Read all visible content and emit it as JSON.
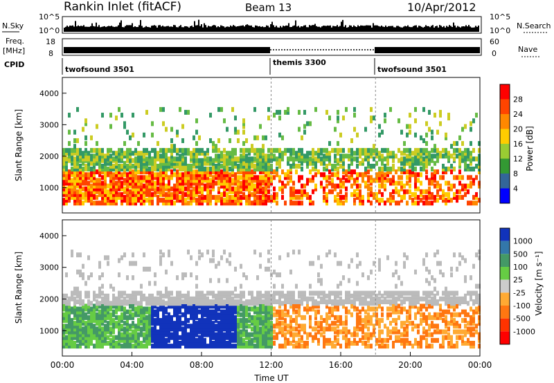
{
  "header": {
    "station": "Rankin Inlet (fitACF)",
    "beam": "Beam 13",
    "date": "10/Apr/2012"
  },
  "strip": {
    "nsky_label": "N.Sky",
    "nsky_ticks": [
      "10^5",
      "10^0"
    ],
    "nsearch_label": "N.Search",
    "nsearch_ticks": [
      "10^5",
      "10^0"
    ],
    "freq_label": "Freq.",
    "freq_unit": "[MHz]",
    "freq_ticks": [
      "18",
      "8"
    ],
    "nave_label": "Nave",
    "nave_ticks": [
      "60",
      "0"
    ],
    "cpid_label": "CPID",
    "cpid_segments": [
      {
        "name": "twofsound 3501",
        "start": 0,
        "end": 12
      },
      {
        "name": "themis 3300",
        "start": 12,
        "end": 18
      },
      {
        "name": "twofsound 3501",
        "start": 18,
        "end": 24
      }
    ]
  },
  "chart_data": [
    {
      "type": "heatmap",
      "title": "",
      "ylabel": "Slant Range [km]",
      "xlabel": "Time UT",
      "ylim": [
        200,
        4500
      ],
      "xlim": [
        0,
        24
      ],
      "yticks": [
        "1000",
        "2000",
        "3000",
        "4000"
      ],
      "xticks": [
        "00:00",
        "04:00",
        "08:00",
        "12:00",
        "16:00",
        "20:00",
        "00:00"
      ],
      "colorbar_label": "Power [dB]",
      "colorbar_ticks": [
        "28",
        "24",
        "20",
        "16",
        "12",
        "8",
        "4"
      ],
      "colorbar_colors": [
        "#ff0000",
        "#ff4400",
        "#ff8800",
        "#ffcc00",
        "#99cc33",
        "#339933",
        "#336699",
        "#0000ff"
      ]
    },
    {
      "type": "heatmap",
      "title": "",
      "ylabel": "Slant Range [km]",
      "xlabel": "Time UT",
      "ylim": [
        200,
        4500
      ],
      "xlim": [
        0,
        24
      ],
      "yticks": [
        "1000",
        "2000",
        "3000",
        "4000"
      ],
      "xticks": [
        "00:00",
        "04:00",
        "08:00",
        "12:00",
        "16:00",
        "20:00",
        "00:00"
      ],
      "colorbar_label": "Velocity [m s⁻¹]",
      "colorbar_ticks": [
        "1000",
        "500",
        "100",
        "25",
        "-25",
        "-100",
        "-500",
        "-1000"
      ],
      "colorbar_colors": [
        "#1133bb",
        "#3377aa",
        "#449966",
        "#66cc44",
        "#cccccc",
        "#ffaa33",
        "#ff7711",
        "#ff3300",
        "#ff0000"
      ]
    }
  ],
  "colors": {
    "power_palette": [
      "#0000ff",
      "#336699",
      "#339966",
      "#66bb44",
      "#cccc22",
      "#ffcc00",
      "#ff8800",
      "#ff4400",
      "#ff0000"
    ],
    "velocity_palette": [
      "#1133bb",
      "#3377aa",
      "#449966",
      "#66cc44",
      "#bbbbbb",
      "#ffaa33",
      "#ff7711",
      "#ff3300"
    ]
  }
}
